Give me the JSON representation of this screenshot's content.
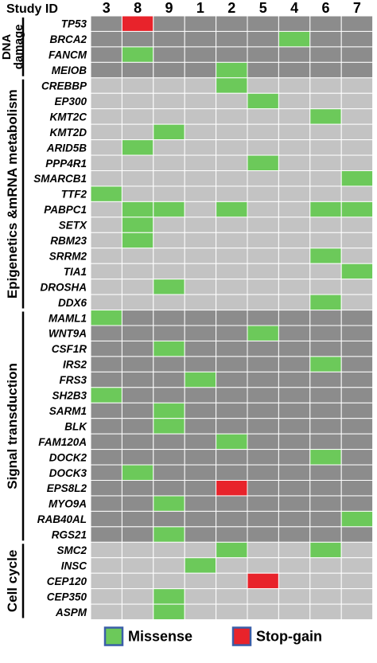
{
  "colors": {
    "missense": "#6cc95a",
    "stop_gain": "#e8232b",
    "dark_bg": "#8c8c8c",
    "light_bg": "#c3c3c3",
    "legend_border": "#3a5ea8"
  },
  "chart_data": {
    "type": "heatmap",
    "header_label": "Study ID",
    "columns": [
      "3",
      "8",
      "9",
      "1",
      "2",
      "5",
      "4",
      "6",
      "7"
    ],
    "groups": [
      {
        "label_lines": [
          "DNA",
          "damage"
        ],
        "shade": "dark",
        "genes": [
          "TP53",
          "BRCA2",
          "FANCM",
          "MEIOB"
        ]
      },
      {
        "label_lines": [
          "Epigenetics &mRNA metabolism"
        ],
        "shade": "light",
        "genes": [
          "CREBBP",
          "EP300",
          "KMT2C",
          "KMT2D",
          "ARID5B",
          "PPP4R1",
          "SMARCB1",
          "TTF2",
          "PABPC1",
          "SETX",
          "RBM23",
          "SRRM2",
          "TIA1",
          "DROSHA",
          "DDX6"
        ]
      },
      {
        "label_lines": [
          "Signal transduction"
        ],
        "shade": "dark",
        "genes": [
          "MAML1",
          "WNT9A",
          "CSF1R",
          "IRS2",
          "FRS3",
          "SH2B3",
          "SARM1",
          "BLK",
          "FAM120A",
          "DOCK2",
          "DOCK3",
          "EPS8L2",
          "MYO9A",
          "RAB40AL",
          "RGS21"
        ]
      },
      {
        "label_lines": [
          "Cell cycle"
        ],
        "shade": "light",
        "genes": [
          "SMC2",
          "INSC",
          "CEP120",
          "CEP350",
          "ASPM"
        ]
      }
    ],
    "mutations": [
      {
        "gene": "TP53",
        "study": "8",
        "type": "stop-gain"
      },
      {
        "gene": "BRCA2",
        "study": "4",
        "type": "missense"
      },
      {
        "gene": "FANCM",
        "study": "8",
        "type": "missense"
      },
      {
        "gene": "MEIOB",
        "study": "2",
        "type": "missense"
      },
      {
        "gene": "CREBBP",
        "study": "2",
        "type": "missense"
      },
      {
        "gene": "EP300",
        "study": "5",
        "type": "missense"
      },
      {
        "gene": "KMT2C",
        "study": "6",
        "type": "missense"
      },
      {
        "gene": "KMT2D",
        "study": "9",
        "type": "missense"
      },
      {
        "gene": "ARID5B",
        "study": "8",
        "type": "missense"
      },
      {
        "gene": "PPP4R1",
        "study": "5",
        "type": "missense"
      },
      {
        "gene": "SMARCB1",
        "study": "7",
        "type": "missense"
      },
      {
        "gene": "TTF2",
        "study": "3",
        "type": "missense"
      },
      {
        "gene": "PABPC1",
        "study": "8",
        "type": "missense"
      },
      {
        "gene": "PABPC1",
        "study": "9",
        "type": "missense"
      },
      {
        "gene": "PABPC1",
        "study": "2",
        "type": "missense"
      },
      {
        "gene": "PABPC1",
        "study": "6",
        "type": "missense"
      },
      {
        "gene": "PABPC1",
        "study": "7",
        "type": "missense"
      },
      {
        "gene": "SETX",
        "study": "8",
        "type": "missense"
      },
      {
        "gene": "RBM23",
        "study": "8",
        "type": "missense"
      },
      {
        "gene": "SRRM2",
        "study": "6",
        "type": "missense"
      },
      {
        "gene": "TIA1",
        "study": "7",
        "type": "missense"
      },
      {
        "gene": "DROSHA",
        "study": "9",
        "type": "missense"
      },
      {
        "gene": "DDX6",
        "study": "6",
        "type": "missense"
      },
      {
        "gene": "MAML1",
        "study": "3",
        "type": "missense"
      },
      {
        "gene": "WNT9A",
        "study": "5",
        "type": "missense"
      },
      {
        "gene": "CSF1R",
        "study": "9",
        "type": "missense"
      },
      {
        "gene": "IRS2",
        "study": "6",
        "type": "missense"
      },
      {
        "gene": "FRS3",
        "study": "1",
        "type": "missense"
      },
      {
        "gene": "SH2B3",
        "study": "3",
        "type": "missense"
      },
      {
        "gene": "SARM1",
        "study": "9",
        "type": "missense"
      },
      {
        "gene": "BLK",
        "study": "9",
        "type": "missense"
      },
      {
        "gene": "FAM120A",
        "study": "2",
        "type": "missense"
      },
      {
        "gene": "DOCK2",
        "study": "6",
        "type": "missense"
      },
      {
        "gene": "DOCK3",
        "study": "8",
        "type": "missense"
      },
      {
        "gene": "EPS8L2",
        "study": "2",
        "type": "stop-gain"
      },
      {
        "gene": "MYO9A",
        "study": "9",
        "type": "missense"
      },
      {
        "gene": "RAB40AL",
        "study": "7",
        "type": "missense"
      },
      {
        "gene": "RGS21",
        "study": "9",
        "type": "missense"
      },
      {
        "gene": "SMC2",
        "study": "2",
        "type": "missense"
      },
      {
        "gene": "SMC2",
        "study": "6",
        "type": "missense"
      },
      {
        "gene": "INSC",
        "study": "1",
        "type": "missense"
      },
      {
        "gene": "CEP120",
        "study": "5",
        "type": "stop-gain"
      },
      {
        "gene": "CEP350",
        "study": "9",
        "type": "missense"
      },
      {
        "gene": "ASPM",
        "study": "9",
        "type": "missense"
      }
    ],
    "legend": [
      {
        "label": "Missense",
        "type": "missense"
      },
      {
        "label": "Stop-gain",
        "type": "stop-gain"
      }
    ]
  }
}
